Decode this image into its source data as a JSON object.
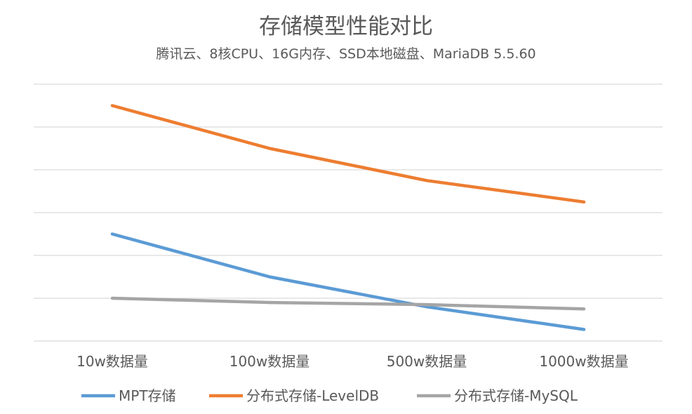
{
  "chart_data": {
    "type": "line",
    "title": "存储模型性能对比",
    "subtitle": "腾讯云、8核CPU、16G内存、SSD本地磁盘、MariaDB 5.5.60",
    "categories": [
      "10w数据量",
      "100w数据量",
      "500w数据量",
      "1000w数据量"
    ],
    "xlabel": "",
    "ylabel": "",
    "ylim": [
      0,
      6
    ],
    "grid": true,
    "legend_position": "bottom",
    "series": [
      {
        "name": "MPT存储",
        "color": "#5B9BD5",
        "values": [
          2.5,
          1.5,
          0.8,
          0.27
        ]
      },
      {
        "name": "分布式存储-LevelDB",
        "color": "#ED7D31",
        "values": [
          5.5,
          4.5,
          3.75,
          3.25
        ]
      },
      {
        "name": "分布式存储-MySQL",
        "color": "#A5A5A5",
        "values": [
          1.0,
          0.9,
          0.85,
          0.75
        ]
      }
    ]
  }
}
